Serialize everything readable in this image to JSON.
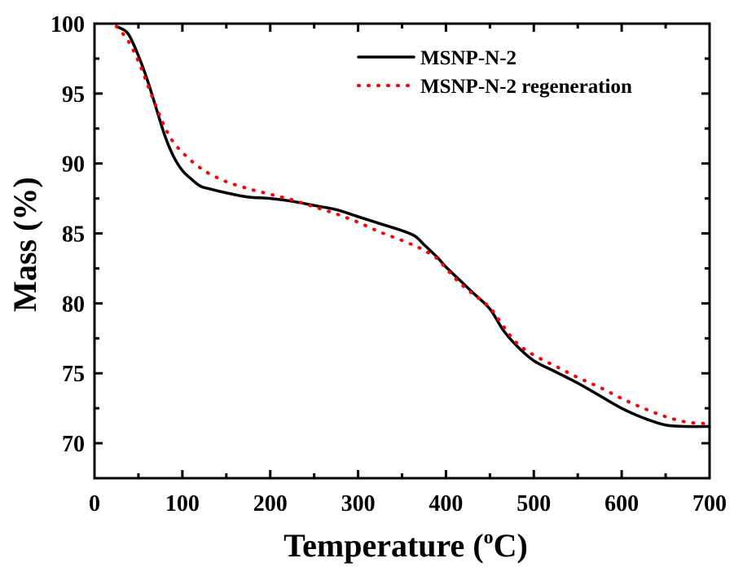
{
  "chart_data": {
    "type": "line",
    "title": "",
    "xlabel": "Temperature (",
    "xlabel_sup": "o",
    "xlabel_unit": "C)",
    "ylabel": "Mass  (%)",
    "xlim": [
      0,
      700
    ],
    "ylim": [
      67.5,
      100
    ],
    "x_ticks": [
      0,
      100,
      200,
      300,
      400,
      500,
      600,
      700
    ],
    "y_ticks": [
      70,
      75,
      80,
      85,
      90,
      95,
      100
    ],
    "grid": false,
    "legend_position": "top-right",
    "series": [
      {
        "name": "MSNP-N-2",
        "color": "#000000",
        "style": "solid",
        "x": [
          25,
          38,
          50,
          60,
          70,
          80,
          90,
          100,
          110,
          120,
          130,
          150,
          175,
          200,
          225,
          250,
          275,
          300,
          325,
          350,
          365,
          375,
          390,
          400,
          415,
          430,
          450,
          465,
          480,
          500,
          525,
          550,
          575,
          600,
          625,
          650,
          675,
          700
        ],
        "y": [
          99.8,
          99.3,
          97.7,
          96.0,
          94.0,
          92.0,
          90.5,
          89.5,
          88.9,
          88.4,
          88.2,
          87.9,
          87.6,
          87.5,
          87.3,
          87.0,
          86.7,
          86.2,
          85.7,
          85.2,
          84.8,
          84.2,
          83.3,
          82.6,
          81.7,
          80.8,
          79.6,
          78.1,
          77.0,
          75.9,
          75.1,
          74.3,
          73.4,
          72.5,
          71.8,
          71.3,
          71.2,
          71.2
        ]
      },
      {
        "name": "MSNP-N-2 regeneration",
        "color": "#ff0000",
        "style": "dotted",
        "x": [
          25,
          38,
          50,
          60,
          70,
          80,
          90,
          100,
          110,
          120,
          130,
          150,
          175,
          200,
          225,
          250,
          275,
          300,
          325,
          350,
          365,
          375,
          390,
          400,
          415,
          430,
          450,
          465,
          480,
          500,
          525,
          550,
          575,
          600,
          625,
          650,
          675,
          700
        ],
        "y": [
          99.8,
          98.8,
          97.3,
          95.7,
          94.1,
          92.6,
          91.5,
          90.8,
          90.2,
          89.7,
          89.3,
          88.7,
          88.2,
          87.8,
          87.4,
          86.9,
          86.4,
          85.8,
          85.1,
          84.5,
          84.1,
          83.8,
          83.2,
          82.5,
          81.5,
          80.7,
          79.7,
          78.4,
          77.2,
          76.3,
          75.5,
          74.7,
          74.0,
          73.2,
          72.5,
          71.9,
          71.5,
          71.4
        ]
      }
    ]
  }
}
